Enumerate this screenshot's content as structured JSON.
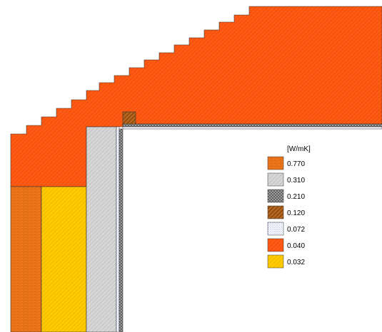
{
  "legend": {
    "unit": "[W/mK]",
    "items": [
      {
        "value": "0.770",
        "pattern": "brick",
        "color": "#f07a1e"
      },
      {
        "value": "0.310",
        "pattern": "light-grey",
        "color": "#c8c8c8"
      },
      {
        "value": "0.210",
        "pattern": "dark-grey",
        "color": "#8a8a8a"
      },
      {
        "value": "0.120",
        "pattern": "brown",
        "color": "#a0560f"
      },
      {
        "value": "0.072",
        "pattern": "dotted",
        "color": "#e8ecff"
      },
      {
        "value": "0.040",
        "pattern": "orange",
        "color": "#ff5a14"
      },
      {
        "value": "0.032",
        "pattern": "yellow",
        "color": "#ffcc00"
      }
    ]
  }
}
